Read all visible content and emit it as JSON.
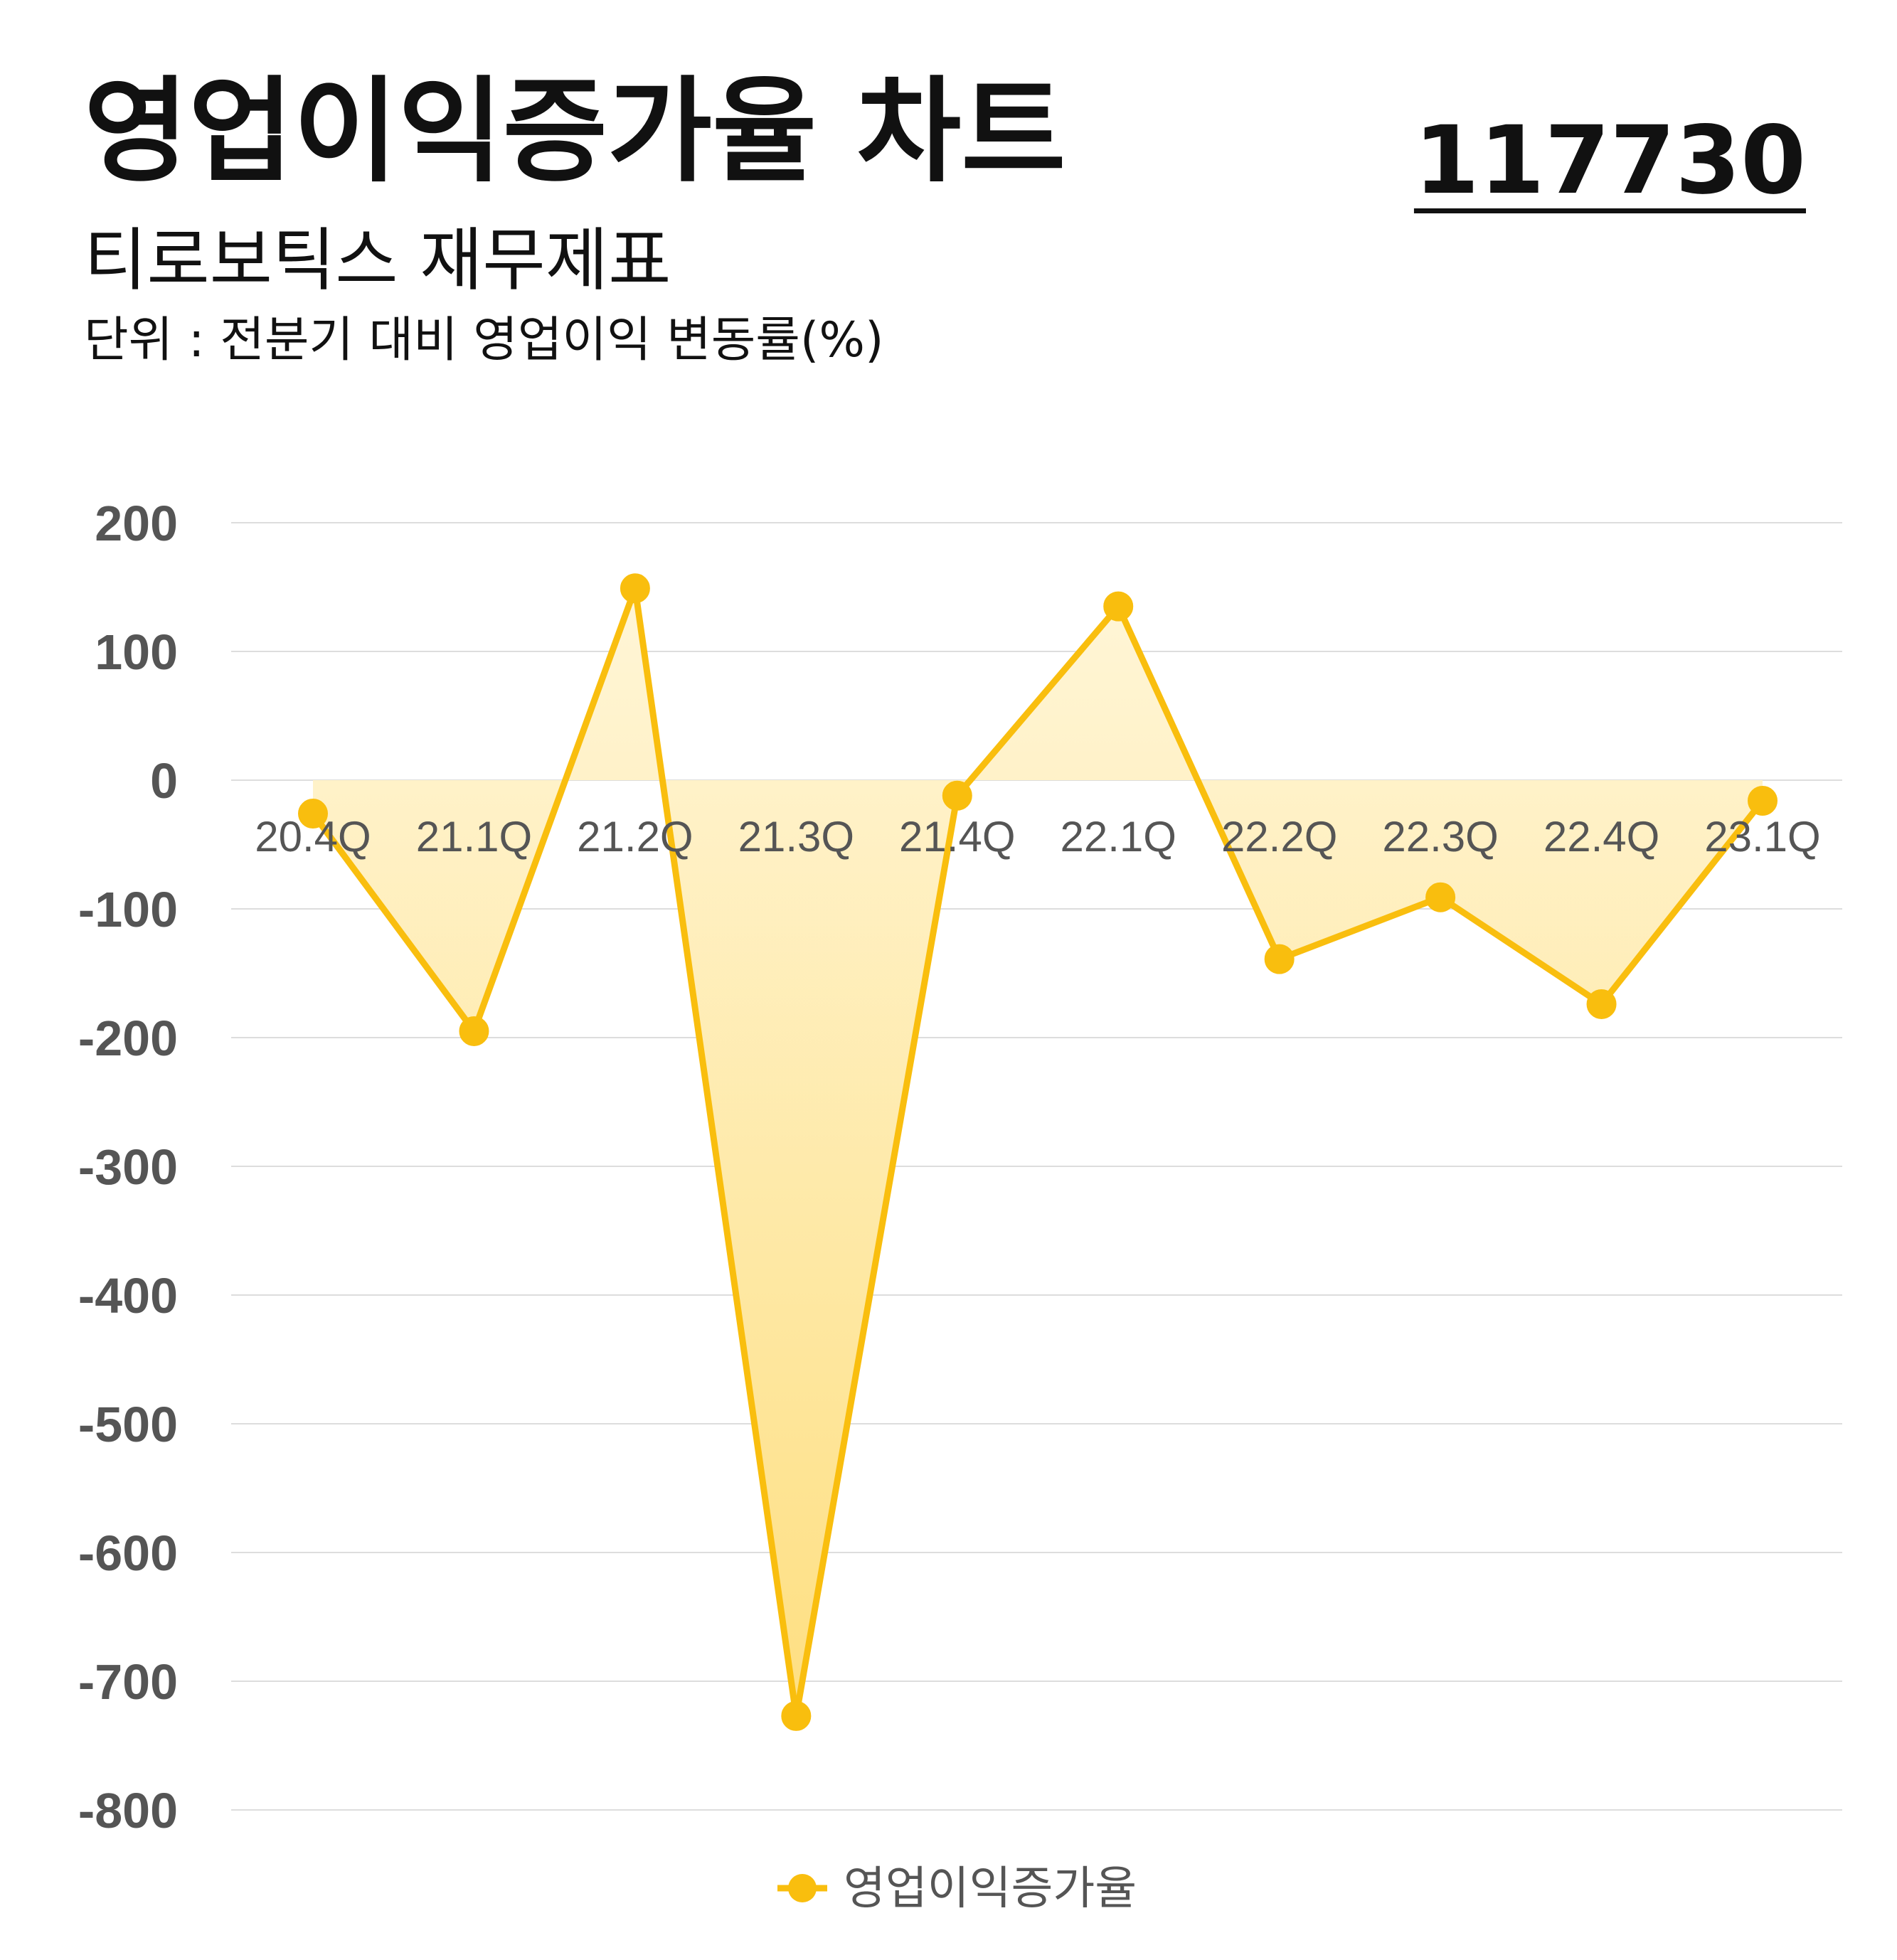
{
  "header": {
    "title": "영업이익증가율 차트",
    "code": "117730",
    "subtitle": "티로보틱스 재무제표",
    "unit": "단위 : 전분기 대비 영업이익 변동률(%)"
  },
  "colors": {
    "line": "#F9BE0E",
    "marker": "#F9BE0E",
    "fill_top": "#FFF7DC",
    "fill_bottom": "#FEDD7A",
    "grid": "#DDDDDD",
    "tick": "#555555"
  },
  "chart_data": {
    "type": "line",
    "categories": [
      "20.4Q",
      "21.1Q",
      "21.2Q",
      "21.3Q",
      "21.4Q",
      "22.1Q",
      "22.2Q",
      "22.3Q",
      "22.4Q",
      "23.1Q"
    ],
    "series": [
      {
        "name": "영업이익증가율",
        "values": [
          -26,
          -195,
          149,
          -727,
          -12,
          135,
          -139,
          -91,
          -174,
          -16
        ]
      }
    ],
    "ylim": [
      -800,
      200
    ],
    "yticks": [
      200,
      100,
      0,
      -100,
      -200,
      -300,
      -400,
      -500,
      -600,
      -700,
      -800
    ],
    "ytick_labels": [
      "200",
      "100",
      "0",
      "-100",
      "-200",
      "-300",
      "-400",
      "-500",
      "-600",
      "-700",
      "-800"
    ],
    "grid": true,
    "area_fill": true,
    "legend_position": "bottom-center"
  }
}
